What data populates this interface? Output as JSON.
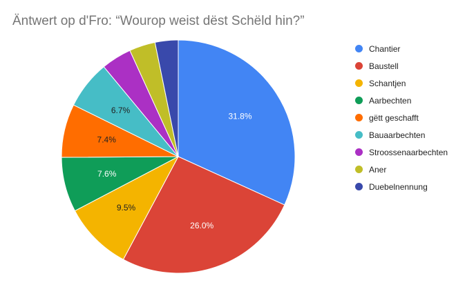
{
  "chart_data": {
    "type": "pie",
    "title": "Äntwert op d'Fro:  “Wourop weist dëst Schëld hin?”",
    "legend_position": "right",
    "slices": [
      {
        "label": "Chantier",
        "value": 31.8,
        "value_label": "31.8%",
        "color": "#4285F4",
        "label_color": "#ffffff"
      },
      {
        "label": "Baustell",
        "value": 26.0,
        "value_label": "26.0%",
        "color": "#DB4437",
        "label_color": "#ffffff"
      },
      {
        "label": "Schantjen",
        "value": 9.5,
        "value_label": "9.5%",
        "color": "#F4B400",
        "label_color": "#222222"
      },
      {
        "label": "Aarbechten",
        "value": 7.6,
        "value_label": "7.6%",
        "color": "#0F9D58",
        "label_color": "#ffffff"
      },
      {
        "label": "gëtt geschafft",
        "value": 7.4,
        "value_label": "7.4%",
        "color": "#FF6D00",
        "label_color": "#222222"
      },
      {
        "label": "Bauaarbechten",
        "value": 6.7,
        "value_label": "6.7%",
        "color": "#46BDC6",
        "label_color": "#222222"
      },
      {
        "label": "Stroossenaarbechten",
        "value": 4.2,
        "value_label": "",
        "color": "#AB30C4",
        "label_color": "#ffffff"
      },
      {
        "label": "Aner",
        "value": 3.6,
        "value_label": "",
        "color": "#C0BE28",
        "label_color": "#222222"
      },
      {
        "label": "Duebelnennung",
        "value": 3.2,
        "value_label": "",
        "color": "#3949AB",
        "label_color": "#ffffff"
      }
    ]
  }
}
